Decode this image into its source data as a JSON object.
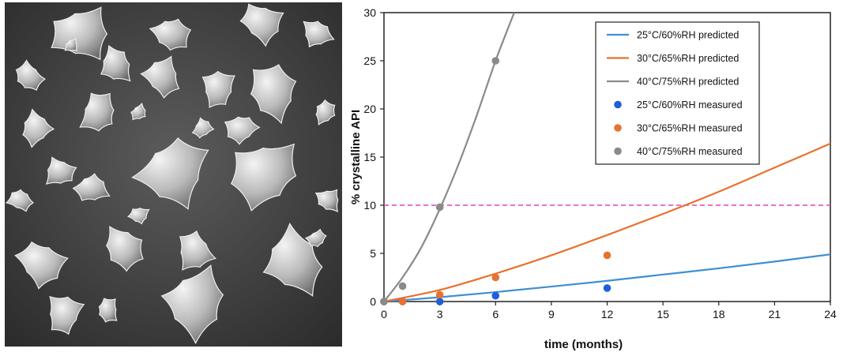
{
  "image_panel": {
    "icon": "sem-micrograph-particles"
  },
  "chart_data": {
    "type": "line",
    "xlabel": "time (months)",
    "ylabel": "% crystalline API",
    "xlim": [
      0,
      24
    ],
    "ylim": [
      0,
      30
    ],
    "xticks": [
      0,
      3,
      6,
      9,
      12,
      15,
      18,
      21,
      24
    ],
    "yticks": [
      0,
      5,
      10,
      15,
      20,
      25,
      30
    ],
    "grid": false,
    "legend_position": "top-right",
    "reference_line": {
      "y": 10,
      "color": "#e040c0",
      "style": "dashed"
    },
    "series": [
      {
        "name": "25°C/60%RH predicted",
        "kind": "line",
        "color": "#3f8fd2",
        "x": [
          0,
          3,
          6,
          9,
          12,
          15,
          18,
          21,
          24
        ],
        "y": [
          0,
          0.45,
          0.98,
          1.55,
          2.15,
          2.8,
          3.45,
          4.15,
          4.9
        ]
      },
      {
        "name": "30°C/65%RH predicted",
        "kind": "line",
        "color": "#e8712e",
        "x": [
          0,
          3,
          6,
          9,
          12,
          15,
          18,
          21,
          24
        ],
        "y": [
          0,
          1.2,
          2.9,
          4.8,
          6.9,
          9.1,
          11.4,
          13.9,
          16.4
        ]
      },
      {
        "name": "40°C/75%RH predicted",
        "kind": "line",
        "color": "#8a8a8a",
        "x": [
          0,
          1,
          2,
          3,
          4,
          5,
          6,
          7
        ],
        "y": [
          0,
          2.5,
          5.6,
          9.6,
          14.2,
          19.4,
          25.0,
          30.0
        ]
      },
      {
        "name": "25°C/60%RH measured",
        "kind": "scatter",
        "color": "#1f5fd9",
        "x": [
          0,
          1,
          3,
          6,
          12
        ],
        "y": [
          0,
          0,
          0,
          0.6,
          1.4
        ]
      },
      {
        "name": "30°C/65%RH measured",
        "kind": "scatter",
        "color": "#e8712e",
        "x": [
          0,
          1,
          3,
          6,
          12
        ],
        "y": [
          0,
          0,
          0.7,
          2.5,
          4.8
        ]
      },
      {
        "name": "40°C/75%RH measured",
        "kind": "scatter",
        "color": "#8a8a8a",
        "x": [
          0,
          1,
          3,
          6
        ],
        "y": [
          0,
          1.6,
          9.8,
          25.0
        ]
      }
    ]
  }
}
